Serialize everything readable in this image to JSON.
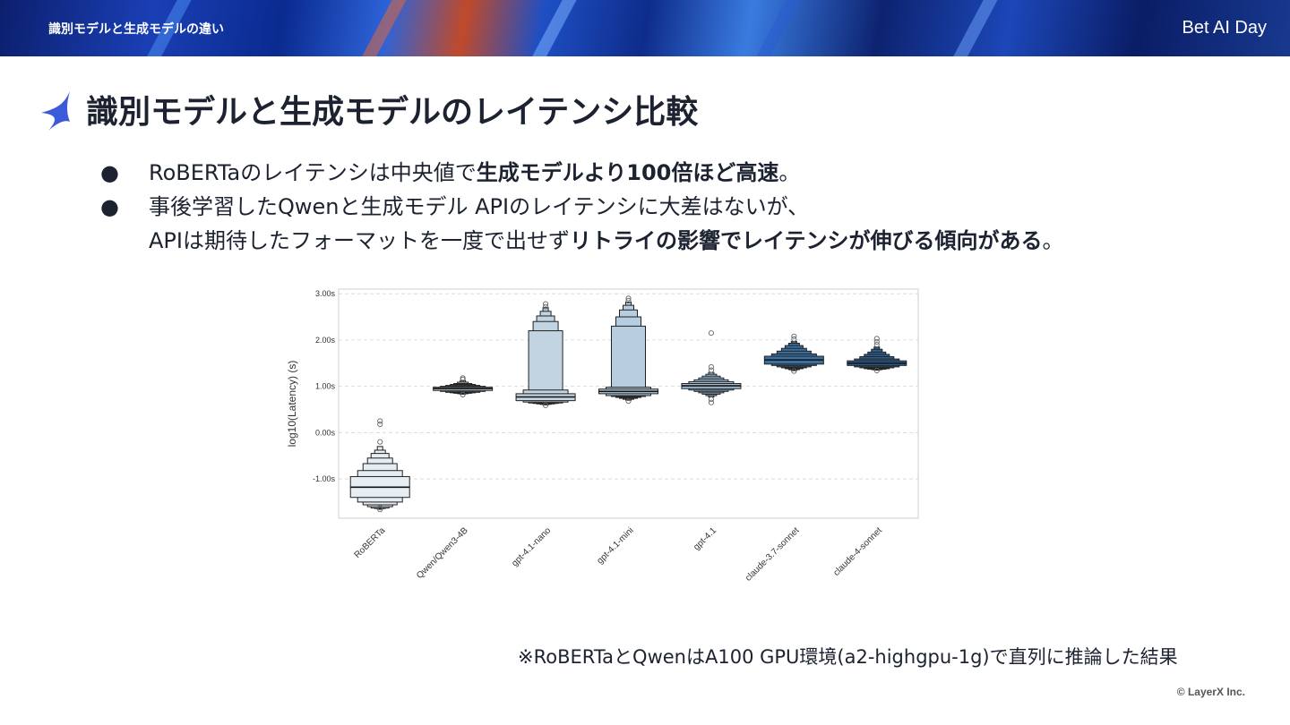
{
  "header": {
    "section_title": "識別モデルと生成モデルの違い",
    "brand": "Bet AI Day"
  },
  "slide": {
    "title": "識別モデルと生成モデルのレイテンシ比較",
    "bullet_marker": "●",
    "bullets": [
      {
        "lines": [
          [
            {
              "t": "RoBERTaのレイテンシは中央値で",
              "bold": false
            },
            {
              "t": "生成モデルより100倍ほど高速",
              "bold": true
            },
            {
              "t": "。",
              "bold": false
            }
          ]
        ]
      },
      {
        "lines": [
          [
            {
              "t": "事後学習したQwenと生成モデル APIのレイテンシに大差はないが、",
              "bold": false
            }
          ],
          [
            {
              "t": "APIは期待したフォーマットを一度で出せず",
              "bold": false
            },
            {
              "t": "リトライの影響でレイテンシが伸びる傾向がある",
              "bold": true
            },
            {
              "t": "。",
              "bold": false
            }
          ]
        ]
      }
    ],
    "footnote": "※RoBERTaとQwenはA100 GPU環境(a2-highgpu-1g)で直列に推論した結果",
    "copyright": "© LayerX Inc."
  },
  "chart_data": {
    "type": "boxen",
    "ylabel": "log10(Latency) (s)",
    "ylim": [
      -1.85,
      3.1
    ],
    "yticks": [
      3.0,
      2.0,
      1.0,
      0.0,
      -1.0
    ],
    "ytick_labels": [
      "3.00s",
      "2.00s",
      "1.00s",
      "0.00s",
      "-1.00s"
    ],
    "grid": "horizontal-dashed",
    "categories": [
      "RoBERTa",
      "Qwen/Qwen3-4B",
      "gpt-4.1-nano",
      "gpt-4.1-mini",
      "gpt-4.1",
      "claude-3.7-sonnet",
      "claude-4-sonnet"
    ],
    "series": [
      {
        "color": "#e6edf3",
        "median": -1.18,
        "boxes": [
          [
            -1.4,
            -0.95
          ],
          [
            -1.5,
            -0.82
          ],
          [
            -1.56,
            -0.67
          ],
          [
            -1.6,
            -0.55
          ],
          [
            -1.63,
            -0.45
          ],
          [
            -1.64,
            -0.38
          ],
          [
            -1.65,
            -0.3
          ]
        ],
        "outliers": [
          -1.66,
          -1.62,
          -0.2,
          0.18,
          0.25
        ]
      },
      {
        "color": "#d4dfe8",
        "median": 0.95,
        "boxes": [
          [
            0.91,
            0.98
          ],
          [
            0.89,
            1.0
          ],
          [
            0.87,
            1.02
          ],
          [
            0.86,
            1.04
          ],
          [
            0.85,
            1.06
          ],
          [
            0.84,
            1.09
          ],
          [
            0.83,
            1.12
          ]
        ],
        "outliers": [
          0.82,
          1.15,
          1.18
        ]
      },
      {
        "color": "#c2d4e2",
        "median": 0.77,
        "boxes": [
          [
            0.69,
            0.84
          ],
          [
            0.66,
            0.92
          ],
          [
            0.64,
            2.2
          ],
          [
            0.63,
            2.4
          ],
          [
            0.62,
            2.52
          ],
          [
            0.61,
            2.62
          ],
          [
            0.6,
            2.7
          ]
        ],
        "outliers": [
          0.59,
          2.72,
          2.78
        ]
      },
      {
        "color": "#b7cde0",
        "median": 0.89,
        "boxes": [
          [
            0.84,
            0.94
          ],
          [
            0.8,
            0.98
          ],
          [
            0.78,
            2.3
          ],
          [
            0.76,
            2.5
          ],
          [
            0.74,
            2.65
          ],
          [
            0.72,
            2.75
          ],
          [
            0.7,
            2.82
          ]
        ],
        "outliers": [
          0.68,
          2.85,
          2.9
        ]
      },
      {
        "color": "#a2bfd8",
        "median": 1.01,
        "boxes": [
          [
            0.95,
            1.06
          ],
          [
            0.92,
            1.1
          ],
          [
            0.89,
            1.14
          ],
          [
            0.86,
            1.18
          ],
          [
            0.83,
            1.22
          ],
          [
            0.8,
            1.26
          ],
          [
            0.77,
            1.3
          ]
        ],
        "outliers": [
          0.65,
          0.72,
          1.35,
          1.42,
          2.15
        ]
      },
      {
        "color": "#3b6f9e",
        "median": 1.57,
        "boxes": [
          [
            1.48,
            1.65
          ],
          [
            1.45,
            1.7
          ],
          [
            1.42,
            1.76
          ],
          [
            1.4,
            1.82
          ],
          [
            1.38,
            1.88
          ],
          [
            1.36,
            1.93
          ],
          [
            1.34,
            1.97
          ]
        ],
        "outliers": [
          1.33,
          2.02,
          2.08
        ]
      },
      {
        "color": "#2d5f8f",
        "median": 1.5,
        "boxes": [
          [
            1.45,
            1.55
          ],
          [
            1.42,
            1.59
          ],
          [
            1.4,
            1.64
          ],
          [
            1.38,
            1.69
          ],
          [
            1.37,
            1.74
          ],
          [
            1.36,
            1.8
          ],
          [
            1.35,
            1.85
          ]
        ],
        "outliers": [
          1.34,
          1.9,
          1.96,
          2.03
        ]
      }
    ]
  },
  "colors": {
    "text": "#1c2230",
    "banner_dark": "#0c1f6e",
    "banner_light": "#3a7be0",
    "star": "#3b5bdb"
  }
}
